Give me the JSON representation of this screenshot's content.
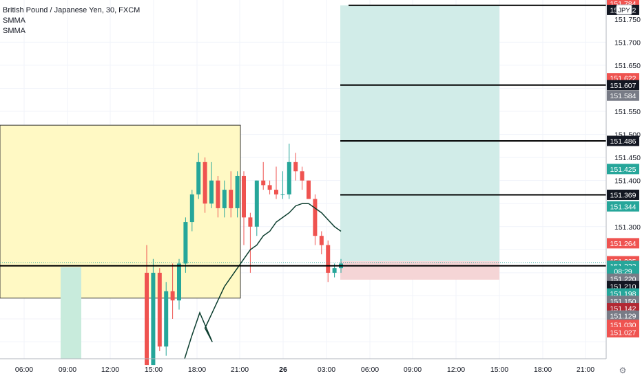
{
  "legend": {
    "symbol": "British Pound / Japanese Yen, 30, FXCM",
    "indicators": [
      "SMMA",
      "SMMA"
    ]
  },
  "currency_badge": "JPY",
  "colors": {
    "up": "#26a69a",
    "down": "#ef5350",
    "smma": "#0b3d2e",
    "zone_fill": "#fff9c4",
    "profit_fill": "#d1ece8",
    "loss_fill": "#f5d5d6",
    "green_zone": "#c8ebdc",
    "level_line": "#000000"
  },
  "chart_data": {
    "type": "candlestick",
    "title": "British Pound / Japanese Yen, 30, FXCM",
    "x_ticks": [
      "06:00",
      "09:00",
      "12:00",
      "15:00",
      "18:00",
      "21:00",
      "26",
      "03:00",
      "06:00",
      "09:00",
      "12:00",
      "15:00",
      "18:00",
      "21:00"
    ],
    "y_ticks": [
      "151.750",
      "151.700",
      "151.650",
      "151.550",
      "151.500",
      "151.450",
      "151.400",
      "151.300"
    ],
    "ylim": [
      151.015,
      151.79
    ],
    "candles": [
      {
        "o": 151.2,
        "h": 151.26,
        "l": 151.0,
        "c": 151.0
      },
      {
        "o": 151.0,
        "h": 151.23,
        "l": 151.0,
        "c": 151.2
      },
      {
        "o": 151.2,
        "h": 151.21,
        "l": 151.03,
        "c": 151.04
      },
      {
        "o": 151.04,
        "h": 151.18,
        "l": 151.02,
        "c": 151.16
      },
      {
        "o": 151.16,
        "h": 151.22,
        "l": 151.1,
        "c": 151.14
      },
      {
        "o": 151.14,
        "h": 151.23,
        "l": 151.12,
        "c": 151.22
      },
      {
        "o": 151.22,
        "h": 151.32,
        "l": 151.2,
        "c": 151.31
      },
      {
        "o": 151.31,
        "h": 151.38,
        "l": 151.29,
        "c": 151.37
      },
      {
        "o": 151.37,
        "h": 151.46,
        "l": 151.36,
        "c": 151.44
      },
      {
        "o": 151.44,
        "h": 151.45,
        "l": 151.33,
        "c": 151.35
      },
      {
        "o": 151.35,
        "h": 151.44,
        "l": 151.34,
        "c": 151.4
      },
      {
        "o": 151.4,
        "h": 151.41,
        "l": 151.32,
        "c": 151.34
      },
      {
        "o": 151.34,
        "h": 151.4,
        "l": 151.32,
        "c": 151.38
      },
      {
        "o": 151.38,
        "h": 151.42,
        "l": 151.32,
        "c": 151.34
      },
      {
        "o": 151.34,
        "h": 151.42,
        "l": 151.32,
        "c": 151.41
      },
      {
        "o": 151.41,
        "h": 151.42,
        "l": 151.26,
        "c": 151.32
      },
      {
        "o": 151.32,
        "h": 151.33,
        "l": 151.2,
        "c": 151.3
      },
      {
        "o": 151.3,
        "h": 151.4,
        "l": 151.28,
        "c": 151.4
      },
      {
        "o": 151.4,
        "h": 151.44,
        "l": 151.38,
        "c": 151.39
      },
      {
        "o": 151.39,
        "h": 151.4,
        "l": 151.37,
        "c": 151.38
      },
      {
        "o": 151.38,
        "h": 151.43,
        "l": 151.36,
        "c": 151.37
      },
      {
        "o": 151.37,
        "h": 151.42,
        "l": 151.36,
        "c": 151.37
      },
      {
        "o": 151.37,
        "h": 151.48,
        "l": 151.36,
        "c": 151.44
      },
      {
        "o": 151.44,
        "h": 151.46,
        "l": 151.4,
        "c": 151.42
      },
      {
        "o": 151.42,
        "h": 151.43,
        "l": 151.38,
        "c": 151.4
      },
      {
        "o": 151.4,
        "h": 151.4,
        "l": 151.36,
        "c": 151.36
      },
      {
        "o": 151.36,
        "h": 151.37,
        "l": 151.26,
        "c": 151.28
      },
      {
        "o": 151.28,
        "h": 151.29,
        "l": 151.24,
        "c": 151.26
      },
      {
        "o": 151.26,
        "h": 151.27,
        "l": 151.18,
        "c": 151.2
      },
      {
        "o": 151.2,
        "h": 151.22,
        "l": 151.19,
        "c": 151.21
      },
      {
        "o": 151.21,
        "h": 151.23,
        "l": 151.2,
        "c": 151.22
      }
    ],
    "smma": [
      null,
      null,
      null,
      null,
      null,
      null,
      null,
      null,
      151.05,
      151.08,
      151.11,
      151.14,
      151.17,
      151.19,
      151.21,
      151.23,
      151.25,
      151.26,
      151.28,
      151.29,
      151.31,
      151.32,
      151.33,
      151.345,
      151.35,
      151.35,
      151.34,
      151.33,
      151.315,
      151.3,
      151.29
    ],
    "horizontal_levels": [
      151.78,
      151.607,
      151.486,
      151.369,
      151.215
    ],
    "price_labels": [
      {
        "value": "151.784",
        "price": 151.784,
        "kind": "down"
      },
      {
        "value": "151.772",
        "price": 151.77,
        "kind": "black"
      },
      {
        "value": "151.622",
        "price": 151.622,
        "kind": "down"
      },
      {
        "value": "151.607",
        "price": 151.607,
        "kind": "black"
      },
      {
        "value": "151.584",
        "price": 151.584,
        "kind": "gray"
      },
      {
        "value": "151.486",
        "price": 151.486,
        "kind": "black"
      },
      {
        "value": "151.425",
        "price": 151.425,
        "kind": "up"
      },
      {
        "value": "151.369",
        "price": 151.369,
        "kind": "black"
      },
      {
        "value": "151.344",
        "price": 151.344,
        "kind": "up"
      },
      {
        "value": "151.264",
        "price": 151.264,
        "kind": "down"
      },
      {
        "value": "151.225",
        "price": 151.225,
        "kind": "down"
      },
      {
        "value": "151.222",
        "price": 151.215,
        "kind": "up"
      },
      {
        "value": "08:29",
        "price": 151.2035,
        "kind": "up"
      },
      {
        "value": "151.220",
        "price": 151.187,
        "kind": "gray"
      },
      {
        "value": "151.210",
        "price": 151.171,
        "kind": "black"
      },
      {
        "value": "151.198",
        "price": 151.155,
        "kind": "up"
      },
      {
        "value": "151.150",
        "price": 151.139,
        "kind": "gray"
      },
      {
        "value": "151.142",
        "price": 151.123,
        "kind": "darkred"
      },
      {
        "value": "151.129",
        "price": 151.107,
        "kind": "gray"
      },
      {
        "value": "151.030",
        "price": 151.087,
        "kind": "down"
      },
      {
        "value": "151.027",
        "price": 151.071,
        "kind": "down"
      }
    ]
  }
}
